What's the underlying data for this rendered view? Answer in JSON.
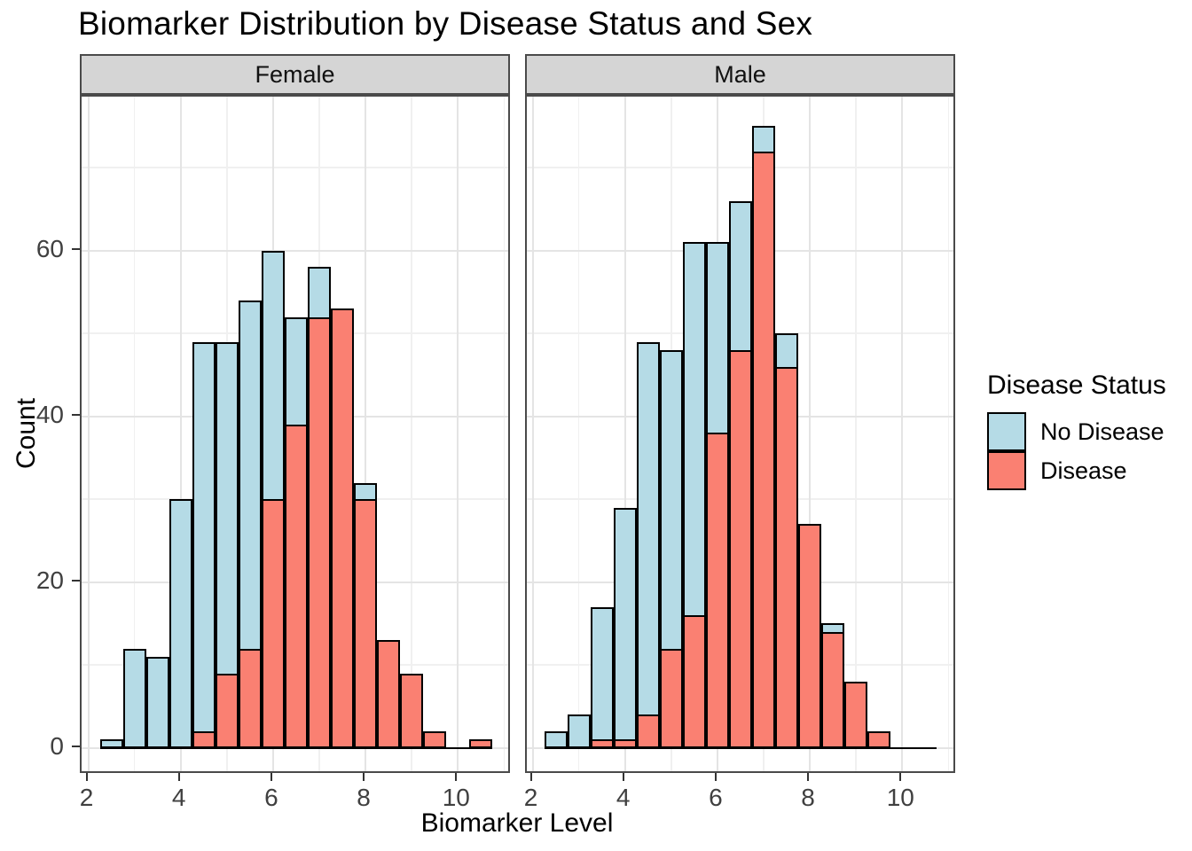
{
  "title": "Biomarker Distribution by Disease Status and Sex",
  "chart_data": {
    "type": "histogram",
    "title": "Biomarker Distribution by Disease Status and Sex",
    "xlabel": "Biomarker Level",
    "ylabel": "Count",
    "facets": [
      "Female",
      "Male"
    ],
    "grid": true,
    "legend_position": "right",
    "legend": {
      "title": "Disease Status",
      "items": [
        {
          "label": "No Disease",
          "color": "#b5dbe6"
        },
        {
          "label": "Disease",
          "color": "#fa8072"
        }
      ]
    },
    "bin_width": 0.5,
    "bin_left_edges": [
      2.25,
      2.75,
      3.25,
      3.75,
      4.25,
      4.75,
      5.25,
      5.75,
      6.25,
      6.75,
      7.25,
      7.75,
      8.25,
      8.75,
      9.25,
      9.75,
      10.25
    ],
    "x_ticks": [
      2,
      4,
      6,
      8,
      10
    ],
    "x_minor_ticks": [
      3,
      5,
      7,
      9,
      11
    ],
    "y_ticks": [
      0,
      20,
      40,
      60
    ],
    "y_minor_ticks": [
      10,
      30,
      50,
      70
    ],
    "xlim": [
      1.85,
      11.15
    ],
    "ylim": [
      0,
      78.5
    ],
    "panels": [
      {
        "facet": "Female",
        "series": [
          {
            "name": "No Disease",
            "color": "#b5dbe6",
            "values": [
              1,
              12,
              11,
              30,
              49,
              49,
              54,
              60,
              52,
              58,
              null,
              32,
              0,
              0,
              0,
              0,
              0
            ]
          },
          {
            "name": "Disease",
            "color": "#fa8072",
            "values": [
              0,
              0,
              0,
              0,
              2,
              9,
              12,
              30,
              39,
              52,
              53,
              30,
              13,
              9,
              2,
              0,
              1
            ]
          }
        ]
      },
      {
        "facet": "Male",
        "series": [
          {
            "name": "No Disease",
            "color": "#b5dbe6",
            "values": [
              2,
              4,
              17,
              29,
              49,
              48,
              61,
              61,
              66,
              75,
              50,
              null,
              15,
              null,
              0,
              0,
              0
            ]
          },
          {
            "name": "Disease",
            "color": "#fa8072",
            "values": [
              0,
              0,
              1,
              1,
              4,
              12,
              16,
              38,
              48,
              72,
              46,
              27,
              14,
              8,
              2,
              0,
              0
            ]
          }
        ]
      }
    ],
    "colors": {
      "no_disease_fill": "#b5dbe6",
      "disease_fill": "#fa8072",
      "bar_outline": "#000000",
      "strip_background": "#d5d5d5",
      "panel_border": "#4a4a4a",
      "grid_major": "#e4e4e4",
      "grid_minor": "#f0f0f0",
      "axis_text": "#404040"
    }
  }
}
